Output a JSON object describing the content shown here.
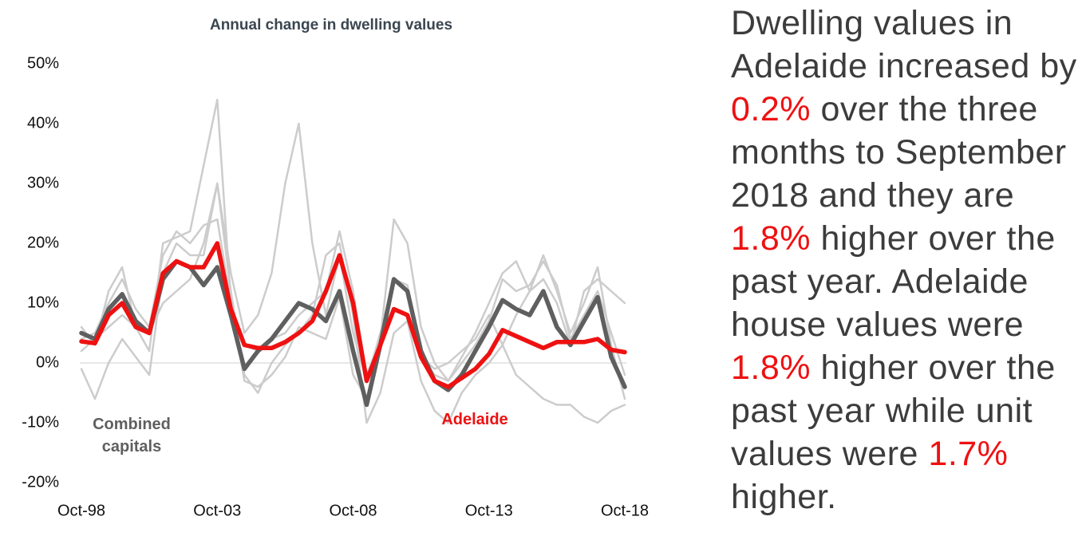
{
  "chart_data": {
    "type": "line",
    "title": "Annual change in dwelling values",
    "x": [
      "Oct-98",
      null,
      null,
      null,
      null,
      null,
      null,
      null,
      null,
      null,
      "Oct-03",
      null,
      null,
      null,
      null,
      null,
      null,
      null,
      null,
      null,
      "Oct-08",
      null,
      null,
      null,
      null,
      null,
      null,
      null,
      null,
      null,
      "Oct-13",
      null,
      null,
      null,
      null,
      null,
      null,
      null,
      null,
      null,
      "Oct-18"
    ],
    "ylim": [
      -20,
      50
    ],
    "yticks": [
      {
        "value": -20,
        "label": "-20%"
      },
      {
        "value": -10,
        "label": "-10%"
      },
      {
        "value": 0,
        "label": "0%"
      },
      {
        "value": 10,
        "label": "10%"
      },
      {
        "value": 20,
        "label": "20%"
      },
      {
        "value": 30,
        "label": "30%"
      },
      {
        "value": 40,
        "label": "40%"
      },
      {
        "value": 50,
        "label": "50%"
      }
    ],
    "series": [
      {
        "color": "#cccccc",
        "values": [
          6,
          3,
          12,
          16,
          6,
          2,
          20,
          21,
          22,
          33,
          44,
          10,
          -3,
          -4,
          -2,
          1,
          6,
          5,
          4,
          11,
          -2,
          -6,
          3,
          14,
          13,
          1,
          -2,
          -3,
          1,
          5,
          10,
          15,
          17,
          12,
          18,
          12,
          5,
          10,
          16,
          3,
          -6
        ]
      },
      {
        "color": "#cccccc",
        "values": [
          2,
          4,
          6,
          8,
          6,
          5,
          10,
          12,
          14,
          20,
          30,
          15,
          5,
          8,
          15,
          30,
          40,
          20,
          8,
          18,
          5,
          -3,
          5,
          14,
          12,
          1,
          -1,
          0,
          2,
          4,
          8,
          3,
          -2,
          -4,
          -6,
          -7,
          -7,
          -9,
          -10,
          -8,
          -7
        ]
      },
      {
        "color": "#cccccc",
        "values": [
          4,
          5,
          10,
          14,
          9,
          6,
          18,
          22,
          20,
          23,
          24,
          10,
          3,
          2,
          4,
          5,
          8,
          10,
          12,
          22,
          12,
          -2,
          4,
          24,
          20,
          6,
          0,
          -3,
          0,
          3,
          7,
          14,
          12,
          13,
          17,
          13,
          4,
          8,
          12,
          5,
          -2
        ]
      },
      {
        "color": "#cccccc",
        "values": [
          -1,
          -6,
          0,
          4,
          1,
          -2,
          15,
          20,
          18,
          18,
          30,
          12,
          -2,
          -5,
          0,
          3,
          5,
          8,
          18,
          20,
          8,
          -10,
          -5,
          5,
          7,
          -3,
          -8,
          -10,
          -5,
          -2,
          0,
          3,
          8,
          12,
          14,
          10,
          3,
          12,
          14,
          12,
          10
        ]
      },
      {
        "name": "Combined capitals",
        "color": "#5f5f5f",
        "values": [
          5,
          4,
          9,
          11.5,
          7,
          5,
          14,
          17,
          16,
          13,
          16,
          8,
          -1,
          2,
          4,
          7,
          10,
          9,
          7,
          12,
          2,
          -7,
          3,
          14,
          12,
          2,
          -3,
          -4.5,
          -2,
          2,
          6,
          10.5,
          9,
          8,
          12,
          6,
          3,
          7,
          11,
          1,
          -4
        ]
      },
      {
        "name": "Adelaide",
        "color": "#ee1111",
        "values": [
          3.6,
          3.3,
          8,
          10,
          6,
          5,
          15,
          17,
          16,
          16,
          20,
          9,
          3,
          2.5,
          2.5,
          3.5,
          5,
          7,
          12,
          18,
          10,
          -3,
          3,
          9,
          8,
          1,
          -3,
          -4,
          -2.5,
          -1,
          1.5,
          5.5,
          4.5,
          3.5,
          2.5,
          3.5,
          3.5,
          3.5,
          4,
          2.2,
          1.8
        ]
      }
    ]
  },
  "side_text": {
    "segments": [
      "Dwelling values in Adelaide increased by ",
      "0.2%",
      " over the three months to September 2018 and they are ",
      "1.8%",
      " higher over the past year. Adelaide house values were ",
      "1.8%",
      " higher over the past year while unit values were ",
      "1.7%",
      " higher."
    ]
  }
}
